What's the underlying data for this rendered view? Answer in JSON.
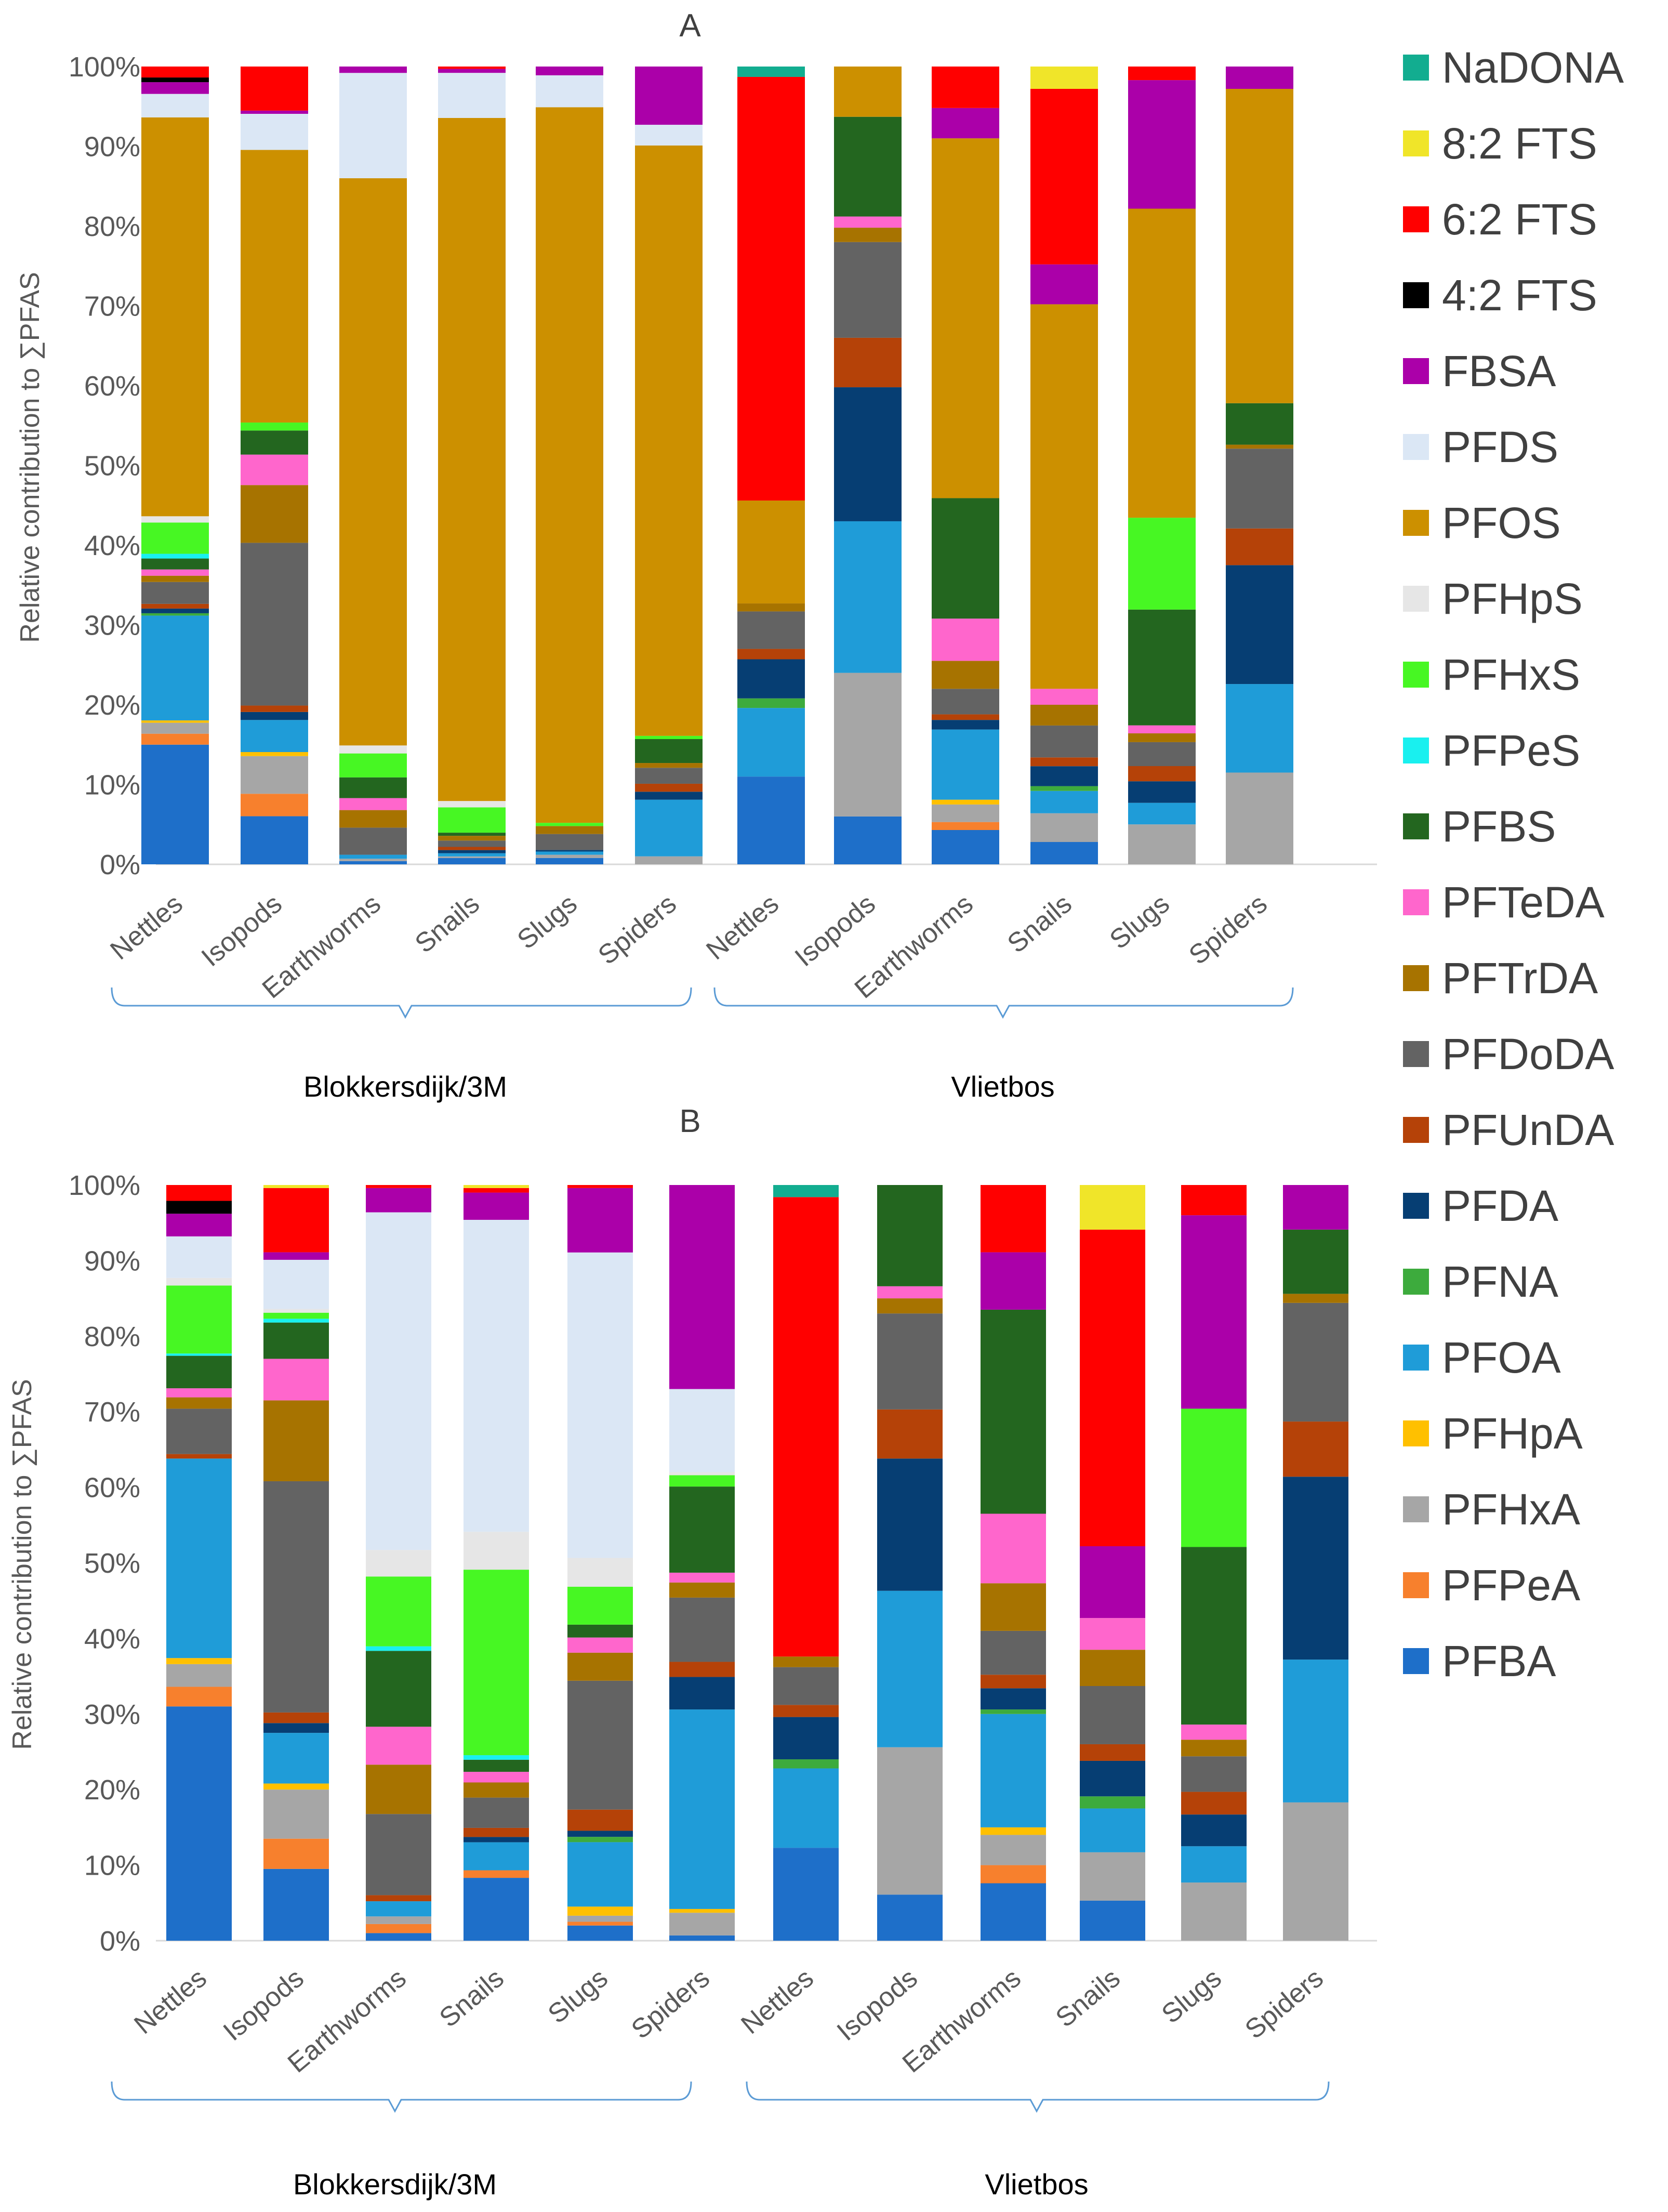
{
  "colors": {
    "PFBA": "#1e6fc9",
    "PFPeA": "#f7802d",
    "PFHxA": "#a6a6a6",
    "PFHpA": "#ffc000",
    "PFOA": "#1f9cd8",
    "PFNA": "#3dab3d",
    "PFDA": "#063e73",
    "PFUnDA": "#b54208",
    "PFDoDA": "#636363",
    "PFTrDA": "#a77300",
    "PFTeDA": "#ff66cc",
    "PFBS": "#23661f",
    "PFPeS": "#19f0ef",
    "PFHxS": "#47f723",
    "PFHpS": "#e6e6e6",
    "PFOS": "#cc9000",
    "PFDS": "#dbe7f5",
    "FBSA": "#ab00a9",
    "4:2 FTS": "#000000",
    "6:2 FTS": "#ff0000",
    "8:2 FTS": "#f0e529",
    "NaDONA": "#12ad90",
    "bracket": "#5b9bd5",
    "axis": "#d9d9d9"
  },
  "legend": {
    "entries": [
      "NaDONA",
      "8:2 FTS",
      "6:2 FTS",
      "4:2 FTS",
      "FBSA",
      "PFDS",
      "PFOS",
      "PFHpS",
      "PFHxS",
      "PFPeS",
      "PFBS",
      "PFTeDA",
      "PFTrDA",
      "PFDoDA",
      "PFUnDA",
      "PFDA",
      "PFNA",
      "PFOA",
      "PFHpA",
      "PFHxA",
      "PFPeA",
      "PFBA"
    ]
  },
  "chart_data": [
    {
      "type": "bar",
      "stacked": true,
      "title": "A",
      "ylabel": "Relative contribution to ∑PFAS",
      "xlabel": "",
      "ylim": [
        0,
        100
      ],
      "yticks": [
        "0%",
        "10%",
        "20%",
        "30%",
        "40%",
        "50%",
        "60%",
        "70%",
        "80%",
        "90%",
        "100%"
      ],
      "groups": [
        {
          "label": "Blokkersdijk/3M",
          "categories": [
            "Nettles",
            "Isopods",
            "Earthworms",
            "Snails",
            "Slugs",
            "Spiders"
          ]
        },
        {
          "label": "Vlietbos",
          "categories": [
            "Nettles",
            "Isopods",
            "Earthworms",
            "Snails",
            "Slugs",
            "Spiders"
          ]
        }
      ],
      "stacks": [
        {
          "PFBA": 15.3,
          "PFPeA": 1.4,
          "PFHxA": 1.4,
          "PFHpA": 0.3,
          "PFOA": 13.4,
          "PFNA": 0.3,
          "PFDA": 0.6,
          "PFUnDA": 0.6,
          "PFDoDA": 2.8,
          "PFTrDA": 0.8,
          "PFTeDA": 0.8,
          "PFBS": 1.4,
          "PFPeS": 0.6,
          "PFHxS": 4.0,
          "PFHpS": 0.8,
          "PFOS": 51.0,
          "PFDS": 3.0,
          "FBSA": 1.5,
          "4:2 FTS": 0.6,
          "6:2 FTS": 1.4
        },
        {
          "PFBA": 6.0,
          "PFPeA": 2.8,
          "PFHxA": 4.7,
          "PFHpA": 0.5,
          "PFOA": 4.0,
          "PFDA": 1.0,
          "PFUnDA": 0.8,
          "PFDoDA": 20.3,
          "PFTrDA": 7.2,
          "PFTeDA": 3.8,
          "PFBS": 3.0,
          "PFHxS": 1.0,
          "PFOS": 34.0,
          "PFDS": 4.5,
          "FBSA": 0.4,
          "6:2 FTS": 5.5
        },
        {
          "PFBA": 0.4,
          "PFHxA": 0.3,
          "PFOA": 0.5,
          "PFDoDA": 3.4,
          "PFTrDA": 2.2,
          "PFTeDA": 1.5,
          "PFBS": 2.6,
          "PFHxS": 3.0,
          "PFHpS": 1.0,
          "PFOS": 71.1,
          "PFDS": 13.2,
          "FBSA": 0.8
        },
        {
          "PFBA": 0.8,
          "PFHxA": 0.2,
          "PFOA": 0.4,
          "PFDA": 0.4,
          "PFUnDA": 0.4,
          "PFDoDA": 0.8,
          "PFTrDA": 0.6,
          "PFBS": 0.4,
          "PFHxS": 3.2,
          "PFHpS": 0.8,
          "PFOS": 86.3,
          "PFDS": 5.7,
          "FBSA": 0.5,
          "6:2 FTS": 0.3
        },
        {
          "PFBA": 0.8,
          "PFHxA": 0.4,
          "PFOA": 0.4,
          "PFDA": 0.2,
          "PFDoDA": 2.0,
          "PFTrDA": 1.0,
          "PFHxS": 0.4,
          "PFOS": 89.7,
          "PFDS": 4.0,
          "FBSA": 1.1
        },
        {
          "PFHxA": 1.0,
          "PFOA": 7.1,
          "PFDA": 1.0,
          "PFUnDA": 1.0,
          "PFDoDA": 2.0,
          "PFTrDA": 0.6,
          "PFBS": 3.0,
          "PFHxS": 0.4,
          "PFOS": 74.0,
          "PFDS": 2.6,
          "FBSA": 7.3
        },
        {
          "PFBA": 11.0,
          "PFOA": 8.6,
          "PFNA": 1.2,
          "PFDA": 4.9,
          "PFUnDA": 1.3,
          "PFDoDA": 4.7,
          "PFTrDA": 1.0,
          "PFOS": 12.9,
          "6:2 FTS": 53.1,
          "NaDONA": 1.3
        },
        {
          "PFBA": 6.0,
          "PFHxA": 18.0,
          "PFOA": 19.0,
          "PFDA": 16.8,
          "PFUnDA": 6.2,
          "PFDoDA": 12.0,
          "PFTrDA": 1.8,
          "PFTeDA": 1.4,
          "PFBS": 12.5,
          "PFOS": 6.3
        },
        {
          "PFBA": 4.3,
          "PFPeA": 1.0,
          "PFHxA": 2.2,
          "PFHpA": 0.6,
          "PFOA": 8.8,
          "PFDA": 1.2,
          "PFUnDA": 0.7,
          "PFDoDA": 3.2,
          "PFTrDA": 3.5,
          "PFTeDA": 5.3,
          "PFBS": 15.1,
          "PFOS": 45.1,
          "FBSA": 3.8,
          "6:2 FTS": 5.2
        },
        {
          "PFBA": 2.8,
          "PFHxA": 3.6,
          "PFOA": 2.8,
          "PFNA": 0.6,
          "PFDA": 2.5,
          "PFUnDA": 1.1,
          "PFDoDA": 4.0,
          "PFTrDA": 2.6,
          "PFTeDA": 2.0,
          "PFOS": 48.2,
          "FBSA": 5.0,
          "6:2 FTS": 22.0,
          "8:2 FTS": 2.8
        },
        {
          "PFHxA": 5.0,
          "PFOA": 2.7,
          "PFDA": 2.7,
          "PFUnDA": 1.9,
          "PFDoDA": 3.0,
          "PFTrDA": 1.1,
          "PFTeDA": 1.0,
          "PFBS": 14.5,
          "PFHxS": 11.5,
          "PFOS": 38.7,
          "FBSA": 16.1,
          "6:2 FTS": 1.7
        },
        {
          "PFHxA": 11.5,
          "PFOA": 11.1,
          "PFDA": 14.9,
          "PFUnDA": 4.6,
          "PFDoDA": 10.0,
          "PFTrDA": 0.5,
          "PFBS": 5.2,
          "PFOS": 39.4,
          "FBSA": 2.8
        }
      ]
    },
    {
      "type": "bar",
      "stacked": true,
      "title": "B",
      "ylabel": "Relative contribution to ∑PFAS",
      "xlabel": "",
      "ylim": [
        0,
        100
      ],
      "yticks": [
        "0%",
        "10%",
        "20%",
        "30%",
        "40%",
        "50%",
        "60%",
        "70%",
        "80%",
        "90%",
        "100%"
      ],
      "groups": [
        {
          "label": "Blokkersdijk/3M",
          "categories": [
            "Nettles",
            "Isopods",
            "Earthworms",
            "Snails",
            "Slugs",
            "Spiders"
          ]
        },
        {
          "label": "Vlietbos",
          "categories": [
            "Nettles",
            "Isopods",
            "Earthworms",
            "Snails",
            "Slugs",
            "Spiders"
          ]
        }
      ],
      "stacks": [
        {
          "PFBA": 31.0,
          "PFPeA": 2.6,
          "PFHxA": 3.0,
          "PFHpA": 0.8,
          "PFOA": 26.4,
          "PFUnDA": 0.6,
          "PFDoDA": 6.0,
          "PFTrDA": 1.5,
          "PFTeDA": 1.2,
          "PFBS": 4.3,
          "PFPeS": 0.3,
          "PFHxS": 9.0,
          "PFHpS": 1.0,
          "PFDS": 5.5,
          "FBSA": 3.0,
          "4:2 FTS": 1.7,
          "6:2 FTS": 2.1
        },
        {
          "PFBA": 9.5,
          "PFPeA": 4.0,
          "PFHxA": 6.5,
          "PFHpA": 0.8,
          "PFOA": 6.7,
          "PFDA": 1.3,
          "PFUnDA": 1.4,
          "PFDoDA": 30.6,
          "PFTrDA": 10.7,
          "PFTeDA": 5.5,
          "PFBS": 4.8,
          "PFPeS": 0.5,
          "PFHxS": 0.8,
          "PFHpS": 0.5,
          "PFDS": 6.5,
          "FBSA": 1.0,
          "6:2 FTS": 8.5,
          "8:2 FTS": 0.4
        },
        {
          "PFBA": 1.0,
          "PFPeA": 1.2,
          "PFHxA": 1.0,
          "PFOA": 2.0,
          "PFUnDA": 0.8,
          "PFDoDA": 10.7,
          "PFTrDA": 6.5,
          "PFTeDA": 5.0,
          "PFBS": 10.0,
          "PFPeS": 0.6,
          "PFHxS": 9.2,
          "PFHpS": 3.5,
          "PFDS": 44.5,
          "FBSA": 3.2,
          "6:2 FTS": 0.4
        },
        {
          "PFBA": 8.3,
          "PFPeA": 1.0,
          "PFOA": 3.7,
          "PFDA": 0.7,
          "PFUnDA": 1.2,
          "PFDoDA": 4.0,
          "PFTrDA": 2.0,
          "PFTeDA": 1.4,
          "PFBS": 1.6,
          "PFPeS": 0.6,
          "PFHxS": 24.5,
          "PFHpS": 5.0,
          "PFDS": 41.2,
          "FBSA": 3.6,
          "6:2 FTS": 0.6,
          "8:2 FTS": 0.4
        },
        {
          "PFBA": 2.0,
          "PFPeA": 0.5,
          "PFHxA": 0.8,
          "PFHpA": 1.2,
          "PFOA": 8.5,
          "PFNA": 0.7,
          "PFDA": 0.8,
          "PFUnDA": 2.8,
          "PFDoDA": 17.0,
          "PFTrDA": 3.7,
          "PFTeDA": 2.0,
          "PFBS": 1.7,
          "PFHxS": 5.0,
          "PFHpS": 3.8,
          "PFDS": 40.3,
          "FBSA": 8.5,
          "6:2 FTS": 0.4
        },
        {
          "PFBA": 0.7,
          "PFHxA": 3.0,
          "PFHpA": 0.5,
          "PFOA": 26.4,
          "PFDA": 4.3,
          "PFUnDA": 2.0,
          "PFDoDA": 8.5,
          "PFTrDA": 2.0,
          "PFTeDA": 1.3,
          "PFBS": 11.4,
          "PFHxS": 1.5,
          "PFHpS": 0.4,
          "PFDS": 11.0,
          "FBSA": 27.0
        },
        {
          "PFBA": 12.3,
          "PFOA": 10.5,
          "PFNA": 1.2,
          "PFDA": 5.6,
          "PFUnDA": 1.6,
          "PFDoDA": 5.0,
          "PFTrDA": 1.4,
          "6:2 FTS": 60.8,
          "NaDONA": 1.6
        },
        {
          "PFBA": 6.1,
          "PFHxA": 19.5,
          "PFOA": 20.7,
          "PFDA": 17.5,
          "PFUnDA": 6.5,
          "PFDoDA": 12.7,
          "PFTrDA": 2.0,
          "PFTeDA": 1.6,
          "PFBS": 13.4
        },
        {
          "PFBA": 7.6,
          "PFPeA": 2.4,
          "PFHxA": 4.0,
          "PFHpA": 1.0,
          "PFOA": 15.0,
          "PFNA": 0.6,
          "PFDA": 2.8,
          "PFUnDA": 1.8,
          "PFDoDA": 5.8,
          "PFTrDA": 6.3,
          "PFTeDA": 9.2,
          "PFBS": 27.0,
          "FBSA": 7.6,
          "6:2 FTS": 8.9
        },
        {
          "PFBA": 5.3,
          "PFHxA": 6.4,
          "PFOA": 5.8,
          "PFNA": 1.6,
          "PFDA": 4.7,
          "PFUnDA": 2.2,
          "PFDoDA": 7.7,
          "PFTrDA": 4.8,
          "PFTeDA": 4.2,
          "FBSA": 9.5,
          "6:2 FTS": 41.9,
          "8:2 FTS": 5.9
        },
        {
          "PFHxA": 7.7,
          "PFOA": 4.8,
          "PFDA": 4.2,
          "PFUnDA": 3.0,
          "PFDoDA": 4.7,
          "PFTrDA": 2.2,
          "PFTeDA": 2.0,
          "PFBS": 23.5,
          "PFHxS": 18.3,
          "FBSA": 25.6,
          "6:2 FTS": 4.0
        },
        {
          "PFHxA": 18.3,
          "PFOA": 18.9,
          "PFDA": 24.2,
          "PFUnDA": 7.3,
          "PFDoDA": 15.7,
          "PFTrDA": 1.2,
          "PFBS": 8.5,
          "FBSA": 5.9
        }
      ]
    }
  ]
}
